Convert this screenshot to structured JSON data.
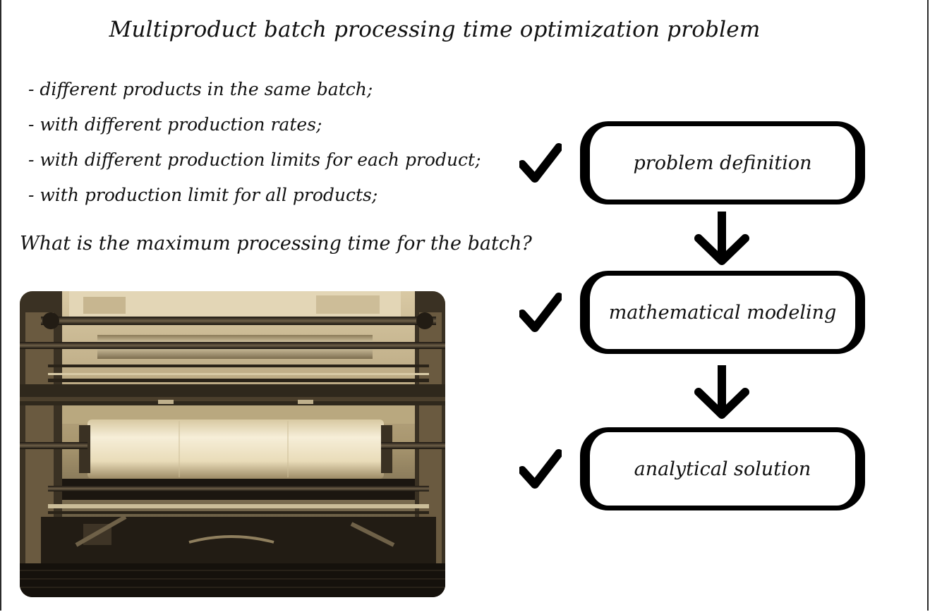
{
  "slide": {
    "title": "Multiproduct batch processing time optimization problem",
    "bullets": [
      "- different products in the same batch;",
      "- with different production rates;",
      "- with different production limits for each product;",
      "- with production limit for all products;"
    ],
    "question": "What is the maximum processing time for the batch?"
  },
  "flowchart": {
    "steps": [
      {
        "label": "problem definition",
        "checked": true
      },
      {
        "label": "mathematical modeling",
        "checked": true
      },
      {
        "label": "analytical solution",
        "checked": true
      }
    ]
  },
  "colors": {
    "ink": "#000000",
    "photo_tint": "#c9b48a"
  },
  "icons": {
    "check": "check-icon",
    "arrow": "arrow-down-icon"
  }
}
